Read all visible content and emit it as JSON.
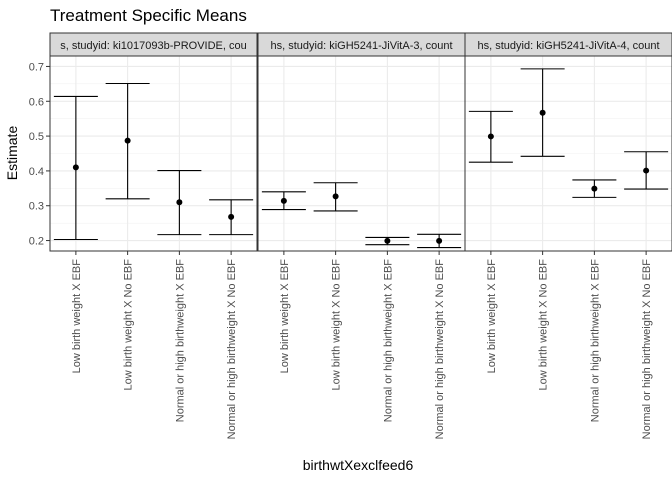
{
  "chart_data": {
    "type": "errorbar",
    "title": "Treatment Specific Means",
    "xlabel": "birthwtXexclfeed6",
    "ylabel": "Estimate",
    "ylim": [
      0.17,
      0.73
    ],
    "yticks": [
      "0.2",
      "0.3",
      "0.4",
      "0.5",
      "0.6",
      "0.7"
    ],
    "grid": true,
    "categories": [
      "Low birth weight X EBF",
      "Low birth weight X No EBF",
      "Normal or high birthweight X EBF",
      "Normal or high birthweight X No EBF"
    ],
    "panels": [
      {
        "strip_label": "s, studyid: ki1017093b-PROVIDE, cou",
        "estimates": [
          0.41,
          0.487,
          0.31,
          0.268
        ],
        "lower": [
          0.203,
          0.32,
          0.217,
          0.217
        ],
        "upper": [
          0.614,
          0.651,
          0.401,
          0.317
        ]
      },
      {
        "strip_label": "hs, studyid: kiGH5241-JiVitA-3, count",
        "estimates": [
          0.314,
          0.327,
          0.199,
          0.199
        ],
        "lower": [
          0.289,
          0.285,
          0.188,
          0.18
        ],
        "upper": [
          0.34,
          0.366,
          0.209,
          0.218
        ]
      },
      {
        "strip_label": "hs, studyid: kiGH5241-JiVitA-4, count",
        "estimates": [
          0.499,
          0.567,
          0.349,
          0.401
        ],
        "lower": [
          0.425,
          0.442,
          0.324,
          0.348
        ],
        "upper": [
          0.571,
          0.693,
          0.374,
          0.455
        ]
      }
    ]
  }
}
